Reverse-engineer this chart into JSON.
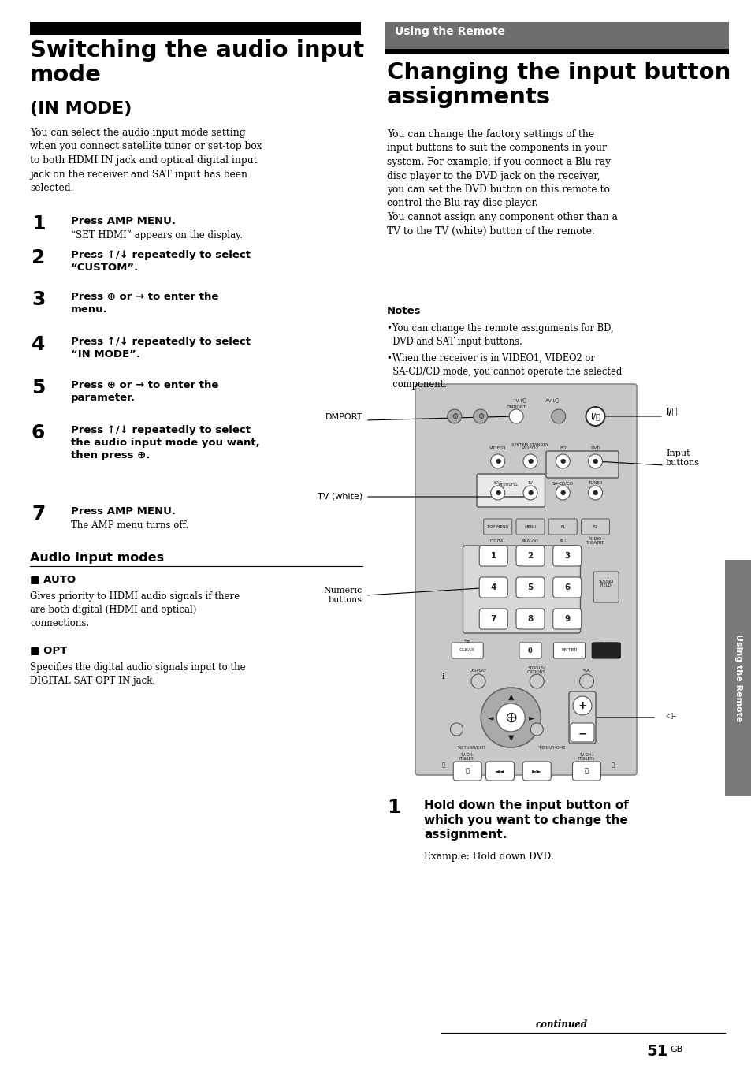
{
  "page_bg": "#ffffff",
  "title_left": "Switching the audio input\nmode",
  "subtitle_left": "(IN MODE)",
  "body_left": "You can select the audio input mode setting\nwhen you connect satellite tuner or set-top box\nto both HDMI IN jack and optical digital input\njack on the receiver and SAT input has been\nselected.",
  "steps_left": [
    {
      "num": "1",
      "bold": "Press AMP MENU.",
      "normal": "“SET HDMI” appears on the display."
    },
    {
      "num": "2",
      "bold": "Press ↑/↓ repeatedly to select\n“CUSTOM”.",
      "normal": ""
    },
    {
      "num": "3",
      "bold": "Press ⊕ or → to enter the\nmenu.",
      "normal": ""
    },
    {
      "num": "4",
      "bold": "Press ↑/↓ repeatedly to select\n“IN MODE”.",
      "normal": ""
    },
    {
      "num": "5",
      "bold": "Press ⊕ or → to enter the\nparameter.",
      "normal": ""
    },
    {
      "num": "6",
      "bold": "Press ↑/↓ repeatedly to select\nthe audio input mode you want,\nthen press ⊕.",
      "normal": ""
    },
    {
      "num": "7",
      "bold": "Press AMP MENU.",
      "normal": "The AMP menu turns off."
    }
  ],
  "audio_modes_title": "Audio input modes",
  "auto_title": "■ AUTO",
  "auto_body": "Gives priority to HDMI audio signals if there\nare both digital (HDMI and optical)\nconnections.",
  "opt_title": "■ OPT",
  "opt_body": "Specifies the digital audio signals input to the\nDIGITAL SAT OPT IN jack.",
  "banner_text": "Using the Remote",
  "banner_bg": "#6e6e6e",
  "title_right": "Changing the input button\nassignments",
  "body_right1": "You can change the factory settings of the\ninput buttons to suit the components in your\nsystem. For example, if you connect a Blu-ray\ndisc player to the DVD jack on the receiver,\nyou can set the DVD button on this remote to\ncontrol the Blu-ray disc player.\nYou cannot assign any component other than a\nTV to the TV (white) button of the remote.",
  "notes_title": "Notes",
  "notes_line1": "•You can change the remote assignments for BD,\n  DVD and SAT input buttons.",
  "notes_line2": "•When the receiver is in VIDEO1, VIDEO2 or\n  SA-CD/CD mode, you cannot operate the selected\n  component.",
  "step_right1_bold": "Hold down the input button of\nwhich you want to change the\nassignment.",
  "step_right1_normal": "Example: Hold down DVD.",
  "sidebar_text": "Using the Remote",
  "sidebar_bg": "#7a7a7a",
  "page_number": "51",
  "page_suffix": "GB",
  "continued_text": "continued",
  "remote_bg": "#c8c8c8",
  "remote_border": "#888888"
}
